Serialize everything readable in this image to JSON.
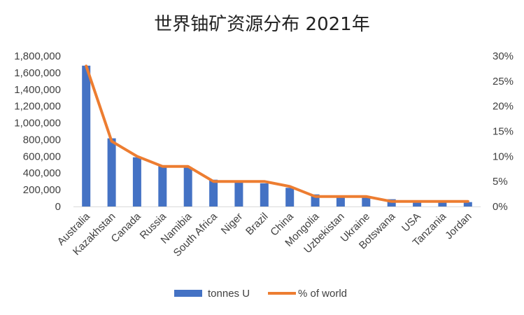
{
  "chart_data": {
    "type": "bar+line",
    "title": "世界铀矿资源分布 2021年",
    "categories": [
      "Australia",
      "Kazakhstan",
      "Canada",
      "Russia",
      "Namibia",
      "South Africa",
      "Niger",
      "Brazil",
      "China",
      "Mongolia",
      "Uzbekistan",
      "Ukraine",
      "Botswana",
      "USA",
      "Tanzania",
      "Jordan"
    ],
    "series": [
      {
        "name": "tonnes U",
        "type": "bar",
        "axis": "left",
        "color": "#4472C4",
        "values": [
          1684100,
          815200,
          588500,
          486000,
          470100,
          320900,
          311100,
          276800,
          223900,
          144600,
          131300,
          107200,
          87200,
          59400,
          58200,
          52500
        ]
      },
      {
        "name": "% of world",
        "type": "line",
        "axis": "right",
        "color": "#ED7D31",
        "values": [
          28,
          13,
          10,
          8,
          8,
          5,
          5,
          5,
          4,
          2,
          2,
          2,
          1,
          1,
          1,
          1
        ]
      }
    ],
    "y_left": {
      "min": 0,
      "max": 1800000,
      "ticks": [
        "0",
        "200,000",
        "400,000",
        "600,000",
        "800,000",
        "1,000,000",
        "1,200,000",
        "1,400,000",
        "1,600,000",
        "1,800,000"
      ]
    },
    "y_right": {
      "min": 0,
      "max": 30,
      "ticks": [
        "0%",
        "5%",
        "10%",
        "15%",
        "20%",
        "25%",
        "30%"
      ]
    },
    "legend": {
      "position": "bottom",
      "entries": [
        "tonnes U",
        "% of world"
      ]
    },
    "grid": false
  }
}
